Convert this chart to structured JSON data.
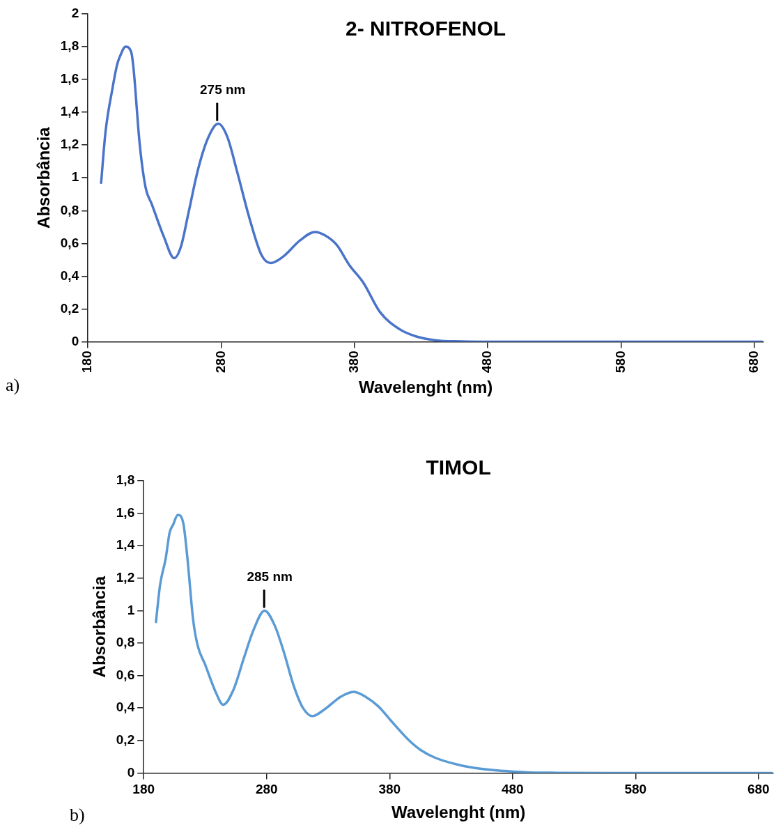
{
  "chart_data": [
    {
      "type": "line",
      "title": "2- NITROFENOL",
      "xlabel": "Wavelenght (nm)",
      "ylabel": "Absorbância",
      "color": "#4a74c9",
      "marker": "none",
      "line_style": "solid",
      "grid": false,
      "legend": false,
      "x": [
        189.9,
        193.2,
        198.3,
        201.9,
        204,
        208.3,
        212.4,
        214.2,
        218.8,
        223.3,
        227.9,
        237,
        244.7,
        249.8,
        255.3,
        262.6,
        270,
        277.8,
        284.6,
        291.9,
        301,
        310.2,
        317.1,
        326.6,
        339.4,
        350.4,
        357.7,
        366.8,
        376,
        386.7,
        399.3,
        414,
        426.5,
        441,
        460,
        480,
        530,
        580,
        630,
        686
      ],
      "values": [
        0.97,
        1.28,
        1.54,
        1.69,
        1.74,
        1.8,
        1.77,
        1.67,
        1.21,
        0.94,
        0.84,
        0.64,
        0.51,
        0.58,
        0.78,
        1.05,
        1.24,
        1.33,
        1.25,
        1.04,
        0.76,
        0.53,
        0.48,
        0.52,
        0.62,
        0.67,
        0.65,
        0.59,
        0.47,
        0.36,
        0.18,
        0.076,
        0.032,
        0.009,
        0.002,
        0,
        0,
        0,
        0,
        0
      ],
      "xlim": [
        180,
        687
      ],
      "xticks": [
        180,
        280,
        380,
        480,
        580,
        680
      ],
      "ylim": [
        0,
        2
      ],
      "yticks": [
        0,
        {
          "value": 0.2,
          "label": "0,2"
        },
        {
          "value": 0.4,
          "label": "0,4"
        },
        {
          "value": 0.6,
          "label": "0,6"
        },
        {
          "value": 0.8,
          "label": "0,8"
        },
        1,
        {
          "value": 1.2,
          "label": "1,2"
        },
        {
          "value": 1.4,
          "label": "1,4"
        },
        {
          "value": 1.6,
          "label": "1,6"
        },
        {
          "value": 1.8,
          "label": "1,8"
        },
        2
      ],
      "annotations": [
        {
          "text": "275 nm",
          "x": 277,
          "y": 1.33
        },
        "a)"
      ]
    },
    {
      "type": "line",
      "title": "TIMOL",
      "xlabel": "Wavelenght (nm)",
      "ylabel": "Absorbância",
      "color": "#5b9bd5",
      "marker": "none",
      "line_style": "solid",
      "grid": false,
      "legend": false,
      "x": [
        190,
        193.4,
        197.9,
        201.1,
        204,
        207.8,
        212.2,
        215.5,
        220.3,
        224.1,
        229.9,
        238.5,
        244.7,
        252.9,
        261.6,
        269.3,
        278.3,
        286.5,
        294.2,
        301.9,
        309.6,
        317.2,
        326.8,
        340.3,
        350.8,
        360.4,
        370.9,
        382.5,
        395.9,
        405.5,
        417,
        435.6,
        454.8,
        474,
        491.3,
        516,
        560,
        620,
        691
      ],
      "values": [
        0.93,
        1.16,
        1.32,
        1.48,
        1.53,
        1.59,
        1.54,
        1.33,
        0.94,
        0.78,
        0.67,
        0.5,
        0.42,
        0.51,
        0.71,
        0.88,
        1,
        0.91,
        0.74,
        0.54,
        0.4,
        0.35,
        0.39,
        0.47,
        0.5,
        0.47,
        0.41,
        0.31,
        0.2,
        0.14,
        0.094,
        0.051,
        0.025,
        0.012,
        0.004,
        0.001,
        0,
        0,
        0
      ],
      "xlim": [
        180,
        692
      ],
      "xticks": [
        180,
        280,
        380,
        480,
        580,
        680
      ],
      "ylim": [
        0,
        1.8
      ],
      "yticks": [
        0,
        {
          "value": 0.2,
          "label": "0,2"
        },
        {
          "value": 0.4,
          "label": "0,4"
        },
        {
          "value": 0.6,
          "label": "0,6"
        },
        {
          "value": 0.8,
          "label": "0,8"
        },
        1,
        {
          "value": 1.2,
          "label": "1,2"
        },
        {
          "value": 1.4,
          "label": "1,4"
        },
        {
          "value": 1.6,
          "label": "1,6"
        },
        {
          "value": 1.8,
          "label": "1,8"
        }
      ],
      "annotations": [
        {
          "text": "285 nm",
          "x": 278,
          "y": 1
        },
        "b)"
      ]
    }
  ]
}
